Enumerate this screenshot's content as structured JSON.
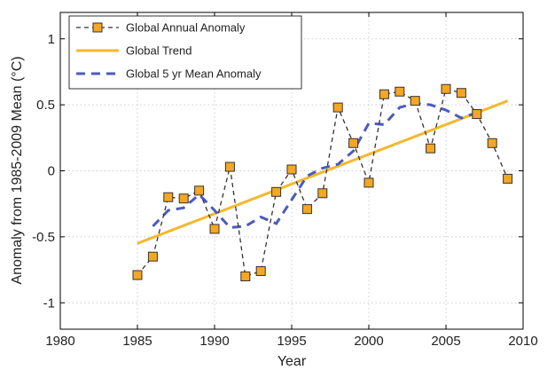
{
  "chart_data": {
    "type": "line",
    "xlabel": "Year",
    "ylabel": "Anomaly from 1985-2009 Mean (°C)",
    "xlim": [
      1980,
      2010
    ],
    "ylim": [
      -1.2,
      1.2
    ],
    "x_ticks": [
      1980,
      1985,
      1990,
      1995,
      2000,
      2005,
      2010
    ],
    "y_ticks": [
      -1,
      -0.5,
      0,
      0.5,
      1
    ],
    "x_tick_labels": [
      "1980",
      "1985",
      "1990",
      "1995",
      "2000",
      "2005",
      "2010"
    ],
    "y_tick_labels": [
      "-1",
      "-0.5",
      "0",
      "0.5",
      "1"
    ],
    "grid": true,
    "legend_position": "top-left",
    "series": [
      {
        "name": "Global Annual Anomaly",
        "style": "dashed-with-square-markers",
        "color": "#333333",
        "marker_color": "#f5a623",
        "x": [
          1985,
          1986,
          1987,
          1988,
          1989,
          1990,
          1991,
          1992,
          1993,
          1994,
          1995,
          1996,
          1997,
          1998,
          1999,
          2000,
          2001,
          2002,
          2003,
          2004,
          2005,
          2006,
          2007,
          2008,
          2009
        ],
        "y": [
          -0.79,
          -0.65,
          -0.2,
          -0.21,
          -0.15,
          -0.44,
          0.03,
          -0.8,
          -0.76,
          -0.16,
          0.01,
          -0.29,
          -0.17,
          0.48,
          0.21,
          -0.09,
          0.58,
          0.6,
          0.53,
          0.17,
          0.62,
          0.59,
          0.43,
          0.21,
          -0.06
        ]
      },
      {
        "name": "Global Trend",
        "style": "solid",
        "color": "#f5b82e",
        "x": [
          1985,
          2009
        ],
        "y": [
          -0.55,
          0.53
        ]
      },
      {
        "name": "Global 5 yr Mean Anomaly",
        "style": "dashed",
        "color": "#4a5bbf",
        "x": [
          1986,
          1987,
          1988,
          1989,
          1990,
          1991,
          1992,
          1993,
          1994,
          1995,
          1996,
          1997,
          1998,
          1999,
          2000,
          2001,
          2002,
          2003,
          2004,
          2005,
          2006,
          2007
        ],
        "y": [
          -0.42,
          -0.3,
          -0.28,
          -0.18,
          -0.3,
          -0.43,
          -0.42,
          -0.35,
          -0.4,
          -0.22,
          -0.04,
          0.02,
          0.05,
          0.15,
          0.36,
          0.35,
          0.48,
          0.51,
          0.5,
          0.46,
          0.4,
          0.44
        ]
      }
    ]
  }
}
